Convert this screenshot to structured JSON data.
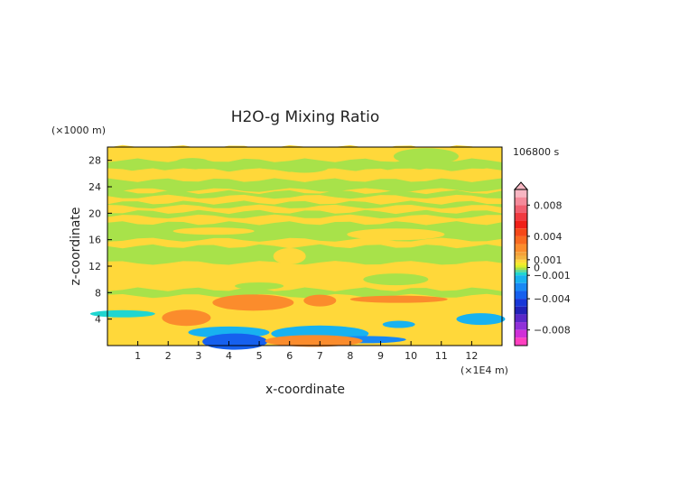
{
  "chart_data": {
    "type": "heatmap",
    "title": "H2O-g Mixing Ratio",
    "xlabel": "x-coordinate",
    "ylabel": "z-coordinate",
    "x_unit": "(×1E4 m)",
    "y_unit": "(×1000 m)",
    "time_label": "106800 s",
    "xlim": [
      0,
      13
    ],
    "ylim": [
      0,
      30
    ],
    "x_ticks": [
      "1",
      "2",
      "3",
      "4",
      "5",
      "6",
      "7",
      "8",
      "9",
      "10",
      "11",
      "12"
    ],
    "y_ticks": [
      "4",
      "8",
      "12",
      "16",
      "20",
      "24",
      "28"
    ],
    "colorbar": {
      "range": [
        -0.01,
        0.01
      ],
      "labels": [
        {
          "value": 0.008,
          "text": "0.008"
        },
        {
          "value": 0.004,
          "text": "0.004"
        },
        {
          "value": 0.001,
          "text": "0.001"
        },
        {
          "value": 0,
          "text": "0"
        },
        {
          "value": -0.001,
          "text": "−0.001"
        },
        {
          "value": -0.004,
          "text": "−0.004"
        },
        {
          "value": -0.008,
          "text": "−0.008"
        }
      ],
      "levels": [
        {
          "lo": 0.009,
          "hi": 0.01,
          "color": "#f7b6c2"
        },
        {
          "lo": 0.008,
          "hi": 0.009,
          "color": "#f48a9a"
        },
        {
          "lo": 0.007,
          "hi": 0.008,
          "color": "#f06070"
        },
        {
          "lo": 0.006,
          "hi": 0.007,
          "color": "#f03a40"
        },
        {
          "lo": 0.005,
          "hi": 0.006,
          "color": "#f02018"
        },
        {
          "lo": 0.004,
          "hi": 0.005,
          "color": "#f54818"
        },
        {
          "lo": 0.003,
          "hi": 0.004,
          "color": "#f86a20"
        },
        {
          "lo": 0.002,
          "hi": 0.003,
          "color": "#fb8c2c"
        },
        {
          "lo": 0.0015,
          "hi": 0.002,
          "color": "#f5a23a"
        },
        {
          "lo": 0.001,
          "hi": 0.0015,
          "color": "#f2b440"
        },
        {
          "lo": 0.0006,
          "hi": 0.001,
          "color": "#ffd83a"
        },
        {
          "lo": 0.0003,
          "hi": 0.0006,
          "color": "#f4ea20"
        },
        {
          "lo": 0,
          "hi": 0.0003,
          "color": "#dcee2a"
        },
        {
          "lo": -0.0003,
          "hi": 0,
          "color": "#a8e24a"
        },
        {
          "lo": -0.0006,
          "hi": -0.0003,
          "color": "#60d890"
        },
        {
          "lo": -0.001,
          "hi": -0.0006,
          "color": "#20d6d0"
        },
        {
          "lo": -0.002,
          "hi": -0.001,
          "color": "#18b2f0"
        },
        {
          "lo": -0.003,
          "hi": -0.002,
          "color": "#1888f4"
        },
        {
          "lo": -0.004,
          "hi": -0.003,
          "color": "#1660ee"
        },
        {
          "lo": -0.005,
          "hi": -0.004,
          "color": "#1838d8"
        },
        {
          "lo": -0.006,
          "hi": -0.005,
          "color": "#2222b8"
        },
        {
          "lo": -0.007,
          "hi": -0.006,
          "color": "#5a28c8"
        },
        {
          "lo": -0.008,
          "hi": -0.007,
          "color": "#9030d8"
        },
        {
          "lo": -0.009,
          "hi": -0.008,
          "color": "#d030d8"
        },
        {
          "lo": -0.01,
          "hi": -0.009,
          "color": "#ff40c0"
        }
      ]
    },
    "background_value": 0.0007,
    "bands": [
      {
        "z0": 28.0,
        "z1": 30.0,
        "value": 0.0007
      },
      {
        "z0": 26.5,
        "z1": 28.0,
        "value": -0.0002
      },
      {
        "z0": 25.0,
        "z1": 26.5,
        "value": 0.0007
      },
      {
        "z0": 23.5,
        "z1": 25.0,
        "value": -0.0002
      },
      {
        "z0": 22.5,
        "z1": 23.2,
        "value": -0.0002
      },
      {
        "z0": 21.0,
        "z1": 21.6,
        "value": -0.0002
      },
      {
        "z0": 19.5,
        "z1": 20.2,
        "value": -0.0002
      },
      {
        "z0": 16.0,
        "z1": 18.5,
        "value": -0.0002
      },
      {
        "z0": 12.5,
        "z1": 15.0,
        "value": -0.0002
      },
      {
        "z0": 8.5,
        "z1": 11.5,
        "value": 0.0007
      },
      {
        "z0": 7.5,
        "z1": 8.5,
        "value": -0.0002
      }
    ],
    "features": [
      {
        "x": 2.8,
        "z": 27.8,
        "value": -0.0002
      },
      {
        "x": 6.5,
        "z": 27.0,
        "value": -0.0002
      },
      {
        "x": 10.5,
        "z": 28.6,
        "value": -0.0002
      },
      {
        "x": 3.5,
        "z": 17.3,
        "value": 0.0007
      },
      {
        "x": 9.5,
        "z": 16.8,
        "value": 0.0007
      },
      {
        "x": 6.0,
        "z": 13.5,
        "value": 0.0007
      },
      {
        "x": 5.0,
        "z": 9.0,
        "value": -0.0002
      },
      {
        "x": 9.5,
        "z": 10.0,
        "value": -0.0002
      },
      {
        "x": 4.8,
        "z": 6.5,
        "value": 0.002
      },
      {
        "x": 9.6,
        "z": 7.0,
        "value": 0.002
      },
      {
        "x": 7.0,
        "z": 6.8,
        "value": 0.002
      },
      {
        "x": 2.6,
        "z": 4.2,
        "value": 0.002
      },
      {
        "x": 0.5,
        "z": 4.8,
        "value": -0.0008
      },
      {
        "x": 4.0,
        "z": 2.0,
        "value": -0.0015
      },
      {
        "x": 7.0,
        "z": 1.8,
        "value": -0.0015
      },
      {
        "x": 9.6,
        "z": 3.2,
        "value": -0.0012
      },
      {
        "x": 12.3,
        "z": 4.0,
        "value": -0.0012
      },
      {
        "x": 4.2,
        "z": 0.6,
        "value": -0.004
      },
      {
        "x": 8.5,
        "z": 0.9,
        "value": -0.003
      },
      {
        "x": 6.8,
        "z": 0.7,
        "value": 0.002
      }
    ]
  }
}
